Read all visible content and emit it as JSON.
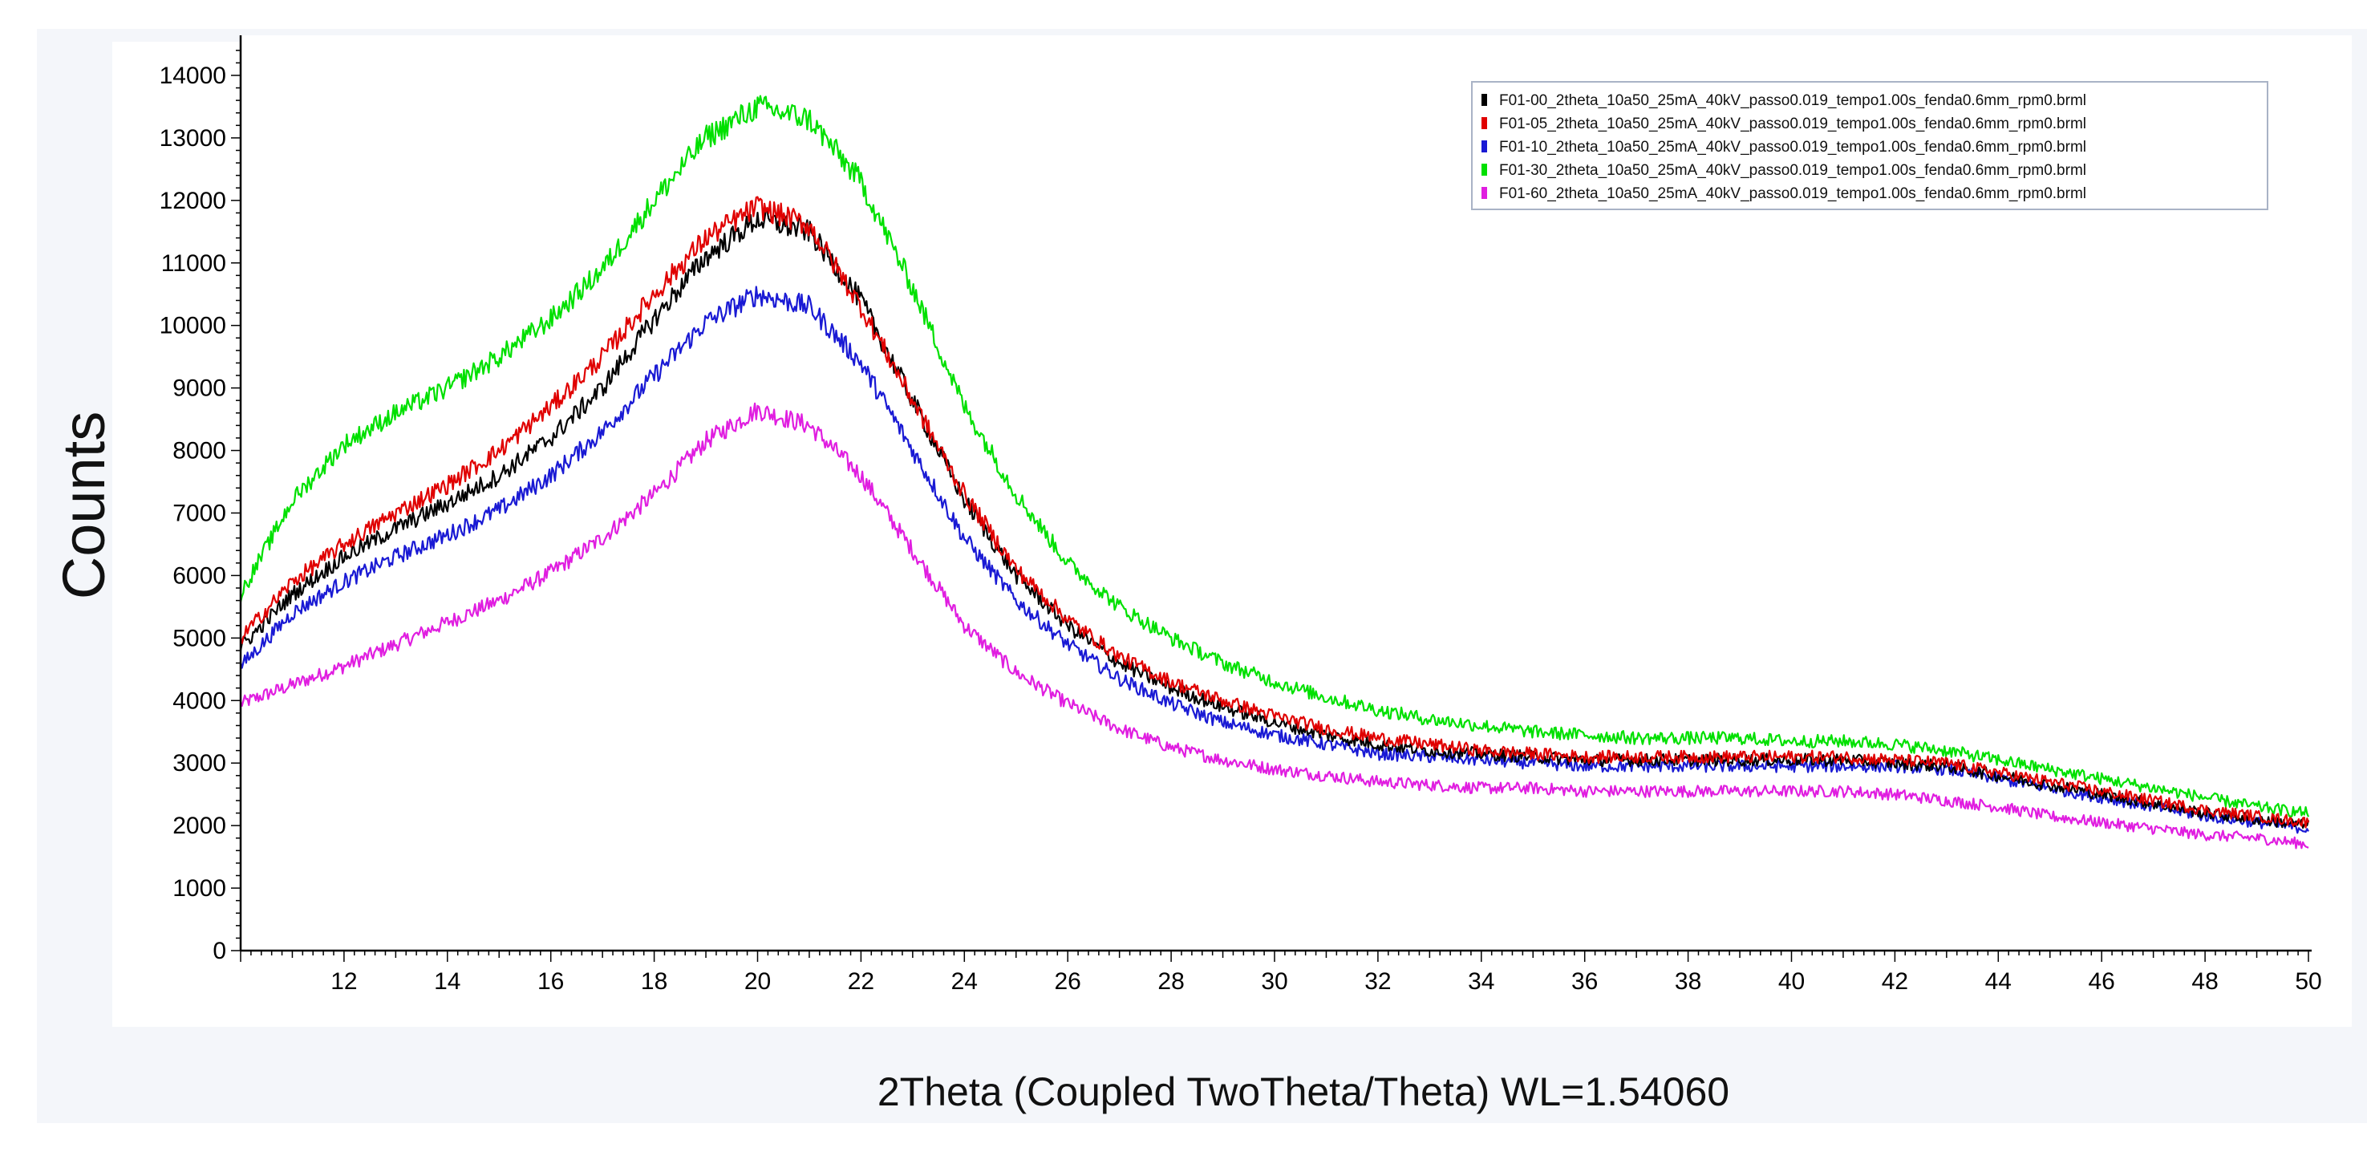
{
  "chart_data": {
    "type": "line",
    "xlabel": "2Theta (Coupled TwoTheta/Theta) WL=1.54060",
    "ylabel": "Counts",
    "xlim": [
      10,
      50
    ],
    "ylim": [
      0,
      14500
    ],
    "x_ticks": [
      12,
      14,
      16,
      18,
      20,
      22,
      24,
      26,
      28,
      30,
      32,
      34,
      36,
      38,
      40,
      42,
      44,
      46,
      48,
      50
    ],
    "y_ticks": [
      0,
      1000,
      2000,
      3000,
      4000,
      5000,
      6000,
      7000,
      8000,
      9000,
      10000,
      11000,
      12000,
      13000,
      14000
    ],
    "grid": false,
    "legend_position": "top-right",
    "x": [
      10,
      11,
      12,
      13,
      14,
      15,
      16,
      17,
      18,
      19,
      20,
      21,
      22,
      23,
      24,
      25,
      26,
      27,
      28,
      29,
      30,
      31,
      32,
      33,
      34,
      35,
      36,
      37,
      38,
      39,
      40,
      41,
      42,
      43,
      44,
      45,
      46,
      47,
      48,
      49,
      50
    ],
    "series": [
      {
        "name": "F01-00_2theta_10a50_25mA_40kV_passo0.019_tempo1.00s_fenda0.6mm_rpm0.brml",
        "color": "#000000",
        "values": [
          4850,
          5700,
          6300,
          6750,
          7150,
          7600,
          8200,
          9000,
          10100,
          11100,
          11700,
          11500,
          10400,
          8800,
          7200,
          6000,
          5200,
          4600,
          4200,
          3900,
          3650,
          3450,
          3300,
          3200,
          3150,
          3100,
          3050,
          3050,
          3050,
          3050,
          3050,
          3050,
          3000,
          2950,
          2800,
          2650,
          2500,
          2350,
          2200,
          2100,
          2000
        ]
      },
      {
        "name": "F01-05_2theta_10a50_25mA_40kV_passo0.019_tempo1.00s_fenda0.6mm_rpm0.brml",
        "color": "#e00000",
        "values": [
          5000,
          5900,
          6500,
          7000,
          7450,
          8000,
          8700,
          9500,
          10500,
          11400,
          11900,
          11600,
          10300,
          8800,
          7300,
          6100,
          5300,
          4700,
          4300,
          4000,
          3750,
          3550,
          3400,
          3300,
          3200,
          3150,
          3100,
          3100,
          3100,
          3100,
          3100,
          3100,
          3050,
          3000,
          2850,
          2700,
          2550,
          2400,
          2250,
          2150,
          2050
        ]
      },
      {
        "name": "F01-10_2theta_10a50_25mA_40kV_passo0.019_tempo1.00s_fenda0.6mm_rpm0.brml",
        "color": "#1a1ad4",
        "values": [
          4550,
          5400,
          5900,
          6300,
          6650,
          7050,
          7600,
          8300,
          9200,
          10050,
          10500,
          10300,
          9400,
          8000,
          6600,
          5600,
          4900,
          4350,
          3950,
          3650,
          3450,
          3300,
          3150,
          3100,
          3050,
          3000,
          2950,
          2950,
          2950,
          2950,
          2950,
          2950,
          2950,
          2900,
          2750,
          2600,
          2450,
          2300,
          2150,
          2050,
          1950
        ]
      },
      {
        "name": "F01-30_2theta_10a50_25mA_40kV_passo0.019_tempo1.00s_fenda0.6mm_rpm0.brml",
        "color": "#00e000",
        "values": [
          5700,
          7200,
          8100,
          8600,
          9000,
          9500,
          10100,
          10900,
          12000,
          13000,
          13500,
          13300,
          12300,
          10600,
          8700,
          7300,
          6200,
          5500,
          5000,
          4600,
          4300,
          4050,
          3850,
          3700,
          3600,
          3500,
          3450,
          3400,
          3400,
          3400,
          3350,
          3350,
          3300,
          3200,
          3050,
          2900,
          2750,
          2600,
          2450,
          2300,
          2200
        ]
      },
      {
        "name": "F01-60_2theta_10a50_25mA_40kV_passo0.019_tempo1.00s_fenda0.6mm_rpm0.brml",
        "color": "#e01ee0",
        "values": [
          3950,
          4250,
          4550,
          4900,
          5250,
          5600,
          6050,
          6600,
          7300,
          8150,
          8650,
          8400,
          7600,
          6400,
          5200,
          4450,
          3950,
          3550,
          3250,
          3050,
          2900,
          2800,
          2700,
          2650,
          2600,
          2600,
          2550,
          2550,
          2550,
          2550,
          2550,
          2550,
          2500,
          2400,
          2300,
          2150,
          2050,
          1950,
          1850,
          1800,
          1700
        ]
      }
    ]
  }
}
